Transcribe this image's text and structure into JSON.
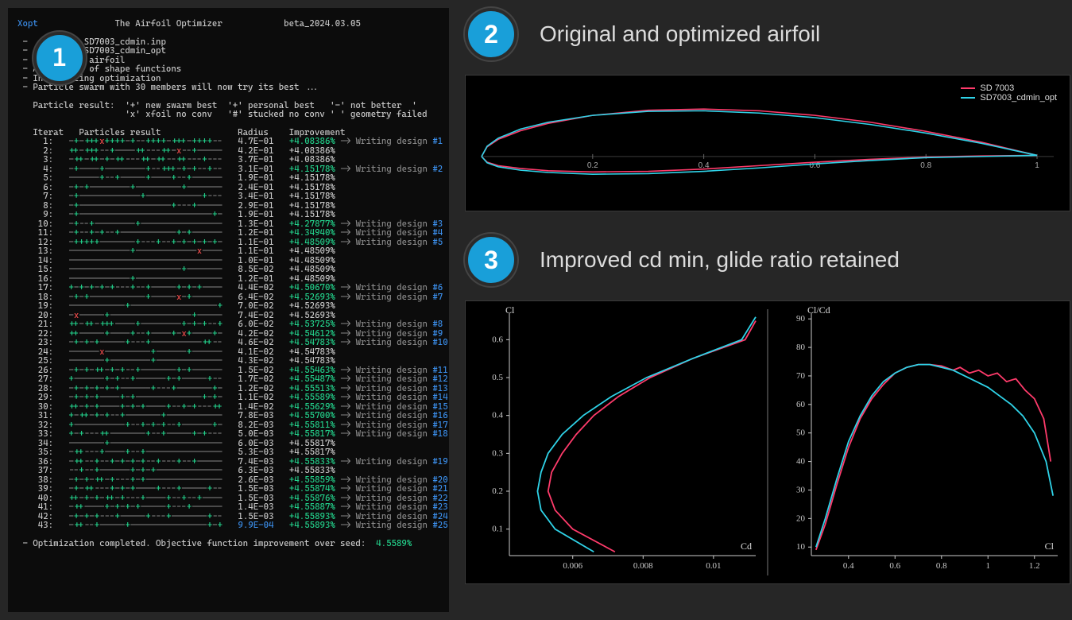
{
  "colors": {
    "bg": "#262626",
    "panel_bg": "#0c0c0c",
    "text": "#c8c8c8",
    "blue": "#3b8eea",
    "green": "#23d18b",
    "red": "#f14c4c",
    "dim": "#888888",
    "badge_bg": "#199fd9",
    "series_original": "#ff3b6b",
    "series_optimized": "#2fd3e8",
    "grid": "#3a3a3a",
    "axis": "#bfbfbf"
  },
  "badges": [
    "1",
    "2",
    "3"
  ],
  "section2_title": "Original and optimized airfoil",
  "section3_title": "Improved cd min, glide ratio retained",
  "terminal": {
    "title_left": "Xopt",
    "title_mid": "The Airfoil Optimizer",
    "title_right": "beta_2024.03.05",
    "preamble": [
      " -           SD7003_cdmin.inp",
      " -         x SD7003_cdmin_opt",
      " -        eed airfoil",
      " - Ass     nt of shape functions",
      " - Initializing optimization",
      " - Particle swarm with 30 members will now try its best ..."
    ],
    "legend1": "   Particle result:  '+' new swarm best  '+' personal best   '-' not better  '",
    "legend2": "                     'x' xfoil no conv   '#' stucked no conv ' ' geometry failed",
    "columns": "   Iterat   Particles result               Radius    Improvement",
    "iterations": [
      {
        "i": 1,
        "p": "-+-+++x++++-+--++++-+++-++++--",
        "r": "4.7E-01",
        "imp": "+4.08386%",
        "d": 1,
        "new": true
      },
      {
        "i": 2,
        "p": "++-+++--+----++---++-x--+-----",
        "r": "4.2E-01",
        "imp": "+4.08386%",
        "d": 0
      },
      {
        "i": 3,
        "p": "-++-++-+-++---++-++--++---+---",
        "r": "3.7E-01",
        "imp": "+4.08386%",
        "d": 0
      },
      {
        "i": 4,
        "p": "-+----+--------+--+++-+-+--+--",
        "r": "3.1E-01",
        "imp": "+4.15178%",
        "d": 2,
        "new": true
      },
      {
        "i": 5,
        "p": "------+--+-----+----+--+------",
        "r": "1.9E-01",
        "imp": "+4.15178%",
        "d": 0
      },
      {
        "i": 6,
        "p": "-+-+--------+---------+-------",
        "r": "2.4E-01",
        "imp": "+4.15178%",
        "d": 0
      },
      {
        "i": 7,
        "p": "-+------------+-----------+---",
        "r": "3.4E-01",
        "imp": "+4.15178%",
        "d": 0
      },
      {
        "i": 8,
        "p": "-+------------------+---+-----",
        "r": "2.9E-01",
        "imp": "+4.15178%",
        "d": 0
      },
      {
        "i": 9,
        "p": "-+--------------------------+-",
        "r": "1.9E-01",
        "imp": "+4.15178%",
        "d": 0
      },
      {
        "i": 10,
        "p": "-+--+--------+----------------",
        "r": "1.3E-01",
        "imp": "+4.27877%",
        "d": 3,
        "new": true
      },
      {
        "i": 11,
        "p": "-+--+-+--+-----------+-+------",
        "r": "1.2E-01",
        "imp": "+4.34940%",
        "d": 4,
        "new": true
      },
      {
        "i": 12,
        "p": "-+++++-------+---+--+-+-+-+-+-",
        "r": "1.1E-01",
        "imp": "+4.48509%",
        "d": 5,
        "new": true
      },
      {
        "i": 13,
        "p": "------------+------------x----",
        "r": "1.1E-01",
        "imp": "+4.48509%",
        "d": 0
      },
      {
        "i": 14,
        "p": "------------------------------",
        "r": "1.0E-01",
        "imp": "+4.48509%",
        "d": 0
      },
      {
        "i": 15,
        "p": "----------------------+-------",
        "r": "8.5E-02",
        "imp": "+4.48509%",
        "d": 0
      },
      {
        "i": 16,
        "p": "------------+-----------------",
        "r": "1.2E-01",
        "imp": "+4.48509%",
        "d": 0
      },
      {
        "i": 17,
        "p": "+-+-+-+-+---+--+-----+-+-m----",
        "r": "4.4E-02",
        "imp": "+4.50670%",
        "d": 6,
        "new": true
      },
      {
        "i": 18,
        "p": "-+-+-----------+-----x-+------",
        "r": "6.4E-02",
        "imp": "+4.52693%",
        "d": 7,
        "new": true
      },
      {
        "i": 19,
        "p": "-----------+-----------------+",
        "r": "7.0E-02",
        "imp": "+4.52693%",
        "d": 0
      },
      {
        "i": 20,
        "p": "-x-----+----------------+-----",
        "r": "7.4E-02",
        "imp": "+4.52693%",
        "d": 0
      },
      {
        "i": 21,
        "p": "++-++-+++----+--------+-+-+--+",
        "r": "6.0E-02",
        "imp": "+4.53725%",
        "d": 8,
        "new": true
      },
      {
        "i": 22,
        "p": "++-----+----+--+----+-x+----+-",
        "r": "4.2E-02",
        "imp": "+4.54612%",
        "d": 9,
        "new": true
      },
      {
        "i": 23,
        "p": "-+-+-+-----+---+----------++--",
        "r": "4.6E-02",
        "imp": "+4.54783%",
        "d": 10,
        "new": true
      },
      {
        "i": 24,
        "p": "------x---------+------+------",
        "r": "4.1E-02",
        "imp": "+4.54783%",
        "d": 0
      },
      {
        "i": 25,
        "p": "-------+--------+-------------",
        "r": "4.3E-02",
        "imp": "+4.54783%",
        "d": 0
      },
      {
        "i": 26,
        "p": "-+-+-++-+-+--+-------+-+------",
        "r": "1.5E-02",
        "imp": "+4.55463%",
        "d": 11,
        "new": true
      },
      {
        "i": 27,
        "p": "+------+-+--+------+-+-----+--",
        "r": "1.7E-02",
        "imp": "+4.55487%",
        "d": 12,
        "new": true
      },
      {
        "i": 28,
        "p": "-+-+-+-+-+------+---+-------+-",
        "r": "1.2E-02",
        "imp": "+4.55513%",
        "d": 13,
        "new": true
      },
      {
        "i": 29,
        "p": "-+-+-+----+-+-------------+-+-",
        "r": "1.1E-02",
        "imp": "+4.55589%",
        "d": 14,
        "new": true
      },
      {
        "i": 30,
        "p": "++-+-+----+-+-+----+--+-+---++",
        "r": "1.4E-02",
        "imp": "+4.55629%",
        "d": 15,
        "new": true
      },
      {
        "i": 31,
        "p": "+-++-+-+--+-------+-----------",
        "r": "7.8E-03",
        "imp": "+4.55700%",
        "d": 16,
        "new": true
      },
      {
        "i": 32,
        "p": "+----------+--+-+-+--+------+-",
        "r": "8.2E-03",
        "imp": "+4.55811%",
        "d": 17,
        "new": true
      },
      {
        "i": 33,
        "p": "+-+---++-------+--+-----+-+---",
        "r": "5.0E-03",
        "imp": "+4.55817%",
        "d": 18,
        "new": true
      },
      {
        "i": 34,
        "p": "-------+----------------------",
        "r": "6.0E-03",
        "imp": "+4.55817%",
        "d": 0
      },
      {
        "i": 35,
        "p": "-++---+----+--+---------------",
        "r": "5.3E-03",
        "imp": "+4.55817%",
        "d": 0
      },
      {
        "i": 36,
        "p": "-++--+--+-+-+-+--+---+--+-----",
        "r": "7.4E-03",
        "imp": "+4.55833%",
        "d": 19,
        "new": true
      },
      {
        "i": 37,
        "p": "--+--+------+-+-+-------------",
        "r": "6.3E-03",
        "imp": "+4.55833%",
        "d": 0
      },
      {
        "i": 38,
        "p": "-+-+-++-+---+-+---------------",
        "r": "2.6E-03",
        "imp": "+4.55859%",
        "d": 20,
        "new": true
      },
      {
        "i": 39,
        "p": "-+-++---+-+-+----+---+-----+--",
        "r": "1.5E-03",
        "imp": "+4.55874%",
        "d": 21,
        "new": true
      },
      {
        "i": 40,
        "p": "++-+-+-++-+---+----+--+--+----",
        "r": "1.5E-03",
        "imp": "+4.55876%",
        "d": 22,
        "new": true
      },
      {
        "i": 41,
        "p": "-++----+-+-+-+-----+---+------",
        "r": "1.4E-03",
        "imp": "+4.55887%",
        "d": 23,
        "new": true
      },
      {
        "i": 42,
        "p": "-+-+-+---+-----+---+-------+--",
        "r": "1.5E-03",
        "imp": "+4.55893%",
        "d": 24,
        "new": true
      },
      {
        "i": 43,
        "p": "-++--+-----+---------------+-+",
        "r": "9.9E-04",
        "imp": "+4.55893%",
        "d": 25,
        "new": true,
        "blue_r": true
      }
    ],
    "footer_pre": " - Optimization completed. Objective function improvement over seed:  ",
    "footer_val": "4.5589%"
  },
  "airfoil_chart": {
    "legend": [
      {
        "label": "SD 7003",
        "color": "#ff3b6b"
      },
      {
        "label": "SD7003_cdmin_opt",
        "color": "#2fd3e8"
      }
    ],
    "x_ticks": [
      0.2,
      0.4,
      0.6,
      0.8,
      1
    ],
    "xlim": [
      0,
      1.03
    ],
    "ylim": [
      -0.06,
      0.1
    ],
    "original_top": [
      [
        0,
        0
      ],
      [
        0.01,
        0.017
      ],
      [
        0.03,
        0.03
      ],
      [
        0.07,
        0.045
      ],
      [
        0.12,
        0.058
      ],
      [
        0.2,
        0.072
      ],
      [
        0.3,
        0.081
      ],
      [
        0.4,
        0.083
      ],
      [
        0.5,
        0.08
      ],
      [
        0.6,
        0.072
      ],
      [
        0.7,
        0.06
      ],
      [
        0.8,
        0.044
      ],
      [
        0.9,
        0.025
      ],
      [
        1.0,
        0.002
      ]
    ],
    "original_bot": [
      [
        0,
        0
      ],
      [
        0.01,
        -0.01
      ],
      [
        0.03,
        -0.016
      ],
      [
        0.07,
        -0.021
      ],
      [
        0.12,
        -0.025
      ],
      [
        0.2,
        -0.027
      ],
      [
        0.3,
        -0.026
      ],
      [
        0.4,
        -0.022
      ],
      [
        0.5,
        -0.016
      ],
      [
        0.6,
        -0.01
      ],
      [
        0.7,
        -0.005
      ],
      [
        0.8,
        -0.001
      ],
      [
        0.9,
        0.001
      ],
      [
        1.0,
        0.002
      ]
    ],
    "optimized_top": [
      [
        0,
        0
      ],
      [
        0.01,
        0.018
      ],
      [
        0.03,
        0.032
      ],
      [
        0.07,
        0.048
      ],
      [
        0.12,
        0.06
      ],
      [
        0.2,
        0.072
      ],
      [
        0.3,
        0.079
      ],
      [
        0.4,
        0.08
      ],
      [
        0.5,
        0.076
      ],
      [
        0.6,
        0.068
      ],
      [
        0.7,
        0.056
      ],
      [
        0.8,
        0.041
      ],
      [
        0.9,
        0.023
      ],
      [
        1.0,
        0.002
      ]
    ],
    "optimized_bot": [
      [
        0,
        0
      ],
      [
        0.01,
        -0.011
      ],
      [
        0.03,
        -0.018
      ],
      [
        0.07,
        -0.024
      ],
      [
        0.12,
        -0.028
      ],
      [
        0.2,
        -0.031
      ],
      [
        0.3,
        -0.03
      ],
      [
        0.4,
        -0.026
      ],
      [
        0.5,
        -0.02
      ],
      [
        0.6,
        -0.013
      ],
      [
        0.7,
        -0.007
      ],
      [
        0.8,
        -0.002
      ],
      [
        0.9,
        0.0
      ],
      [
        1.0,
        0.002
      ]
    ]
  },
  "polar_chart": {
    "left": {
      "xlabel": "Cd",
      "ylabel": "Cl",
      "xlim": [
        0.0042,
        0.0112
      ],
      "xticks": [
        0.006,
        0.008,
        0.01
      ],
      "ylim": [
        0.03,
        0.67
      ],
      "yticks": [
        0.1,
        0.2,
        0.3,
        0.4,
        0.5,
        0.6
      ],
      "original": [
        [
          0.0072,
          0.04
        ],
        [
          0.006,
          0.1
        ],
        [
          0.0055,
          0.15
        ],
        [
          0.0053,
          0.2
        ],
        [
          0.0054,
          0.25
        ],
        [
          0.0057,
          0.3
        ],
        [
          0.0061,
          0.35
        ],
        [
          0.0066,
          0.4
        ],
        [
          0.0073,
          0.45
        ],
        [
          0.0082,
          0.5
        ],
        [
          0.0094,
          0.55
        ],
        [
          0.0109,
          0.6
        ],
        [
          0.0112,
          0.65
        ]
      ],
      "optimized": [
        [
          0.0066,
          0.04
        ],
        [
          0.0055,
          0.1
        ],
        [
          0.0051,
          0.15
        ],
        [
          0.005,
          0.2
        ],
        [
          0.0051,
          0.25
        ],
        [
          0.0053,
          0.3
        ],
        [
          0.0057,
          0.35
        ],
        [
          0.0063,
          0.4
        ],
        [
          0.0071,
          0.45
        ],
        [
          0.0081,
          0.5
        ],
        [
          0.0094,
          0.55
        ],
        [
          0.0108,
          0.6
        ],
        [
          0.0112,
          0.66
        ]
      ]
    },
    "right": {
      "xlabel": "Cl",
      "ylabel": "Cl/Cd",
      "xlim": [
        0.24,
        1.3
      ],
      "xticks": [
        0.4,
        0.6,
        0.8,
        1.0,
        1.2
      ],
      "ylim": [
        7,
        92
      ],
      "yticks": [
        10,
        20,
        30,
        40,
        50,
        60,
        70,
        80,
        90
      ],
      "original": [
        [
          0.26,
          9
        ],
        [
          0.3,
          18
        ],
        [
          0.35,
          32
        ],
        [
          0.4,
          45
        ],
        [
          0.45,
          55
        ],
        [
          0.5,
          62
        ],
        [
          0.55,
          67
        ],
        [
          0.6,
          71
        ],
        [
          0.65,
          73
        ],
        [
          0.7,
          74
        ],
        [
          0.75,
          74
        ],
        [
          0.8,
          73.5
        ],
        [
          0.85,
          72
        ],
        [
          0.88,
          73
        ],
        [
          0.92,
          71
        ],
        [
          0.96,
          72
        ],
        [
          1.0,
          70
        ],
        [
          1.04,
          71
        ],
        [
          1.08,
          68
        ],
        [
          1.12,
          69
        ],
        [
          1.16,
          65
        ],
        [
          1.2,
          62
        ],
        [
          1.24,
          55
        ],
        [
          1.27,
          40
        ]
      ],
      "optimized": [
        [
          0.26,
          10
        ],
        [
          0.3,
          20
        ],
        [
          0.35,
          34
        ],
        [
          0.4,
          47
        ],
        [
          0.45,
          56
        ],
        [
          0.5,
          63
        ],
        [
          0.55,
          68
        ],
        [
          0.6,
          71
        ],
        [
          0.65,
          73
        ],
        [
          0.7,
          74
        ],
        [
          0.75,
          74
        ],
        [
          0.8,
          73
        ],
        [
          0.85,
          72
        ],
        [
          0.9,
          70
        ],
        [
          0.95,
          68
        ],
        [
          1.0,
          66
        ],
        [
          1.05,
          63
        ],
        [
          1.1,
          60
        ],
        [
          1.15,
          56
        ],
        [
          1.2,
          50
        ],
        [
          1.25,
          40
        ],
        [
          1.28,
          28
        ]
      ]
    }
  }
}
